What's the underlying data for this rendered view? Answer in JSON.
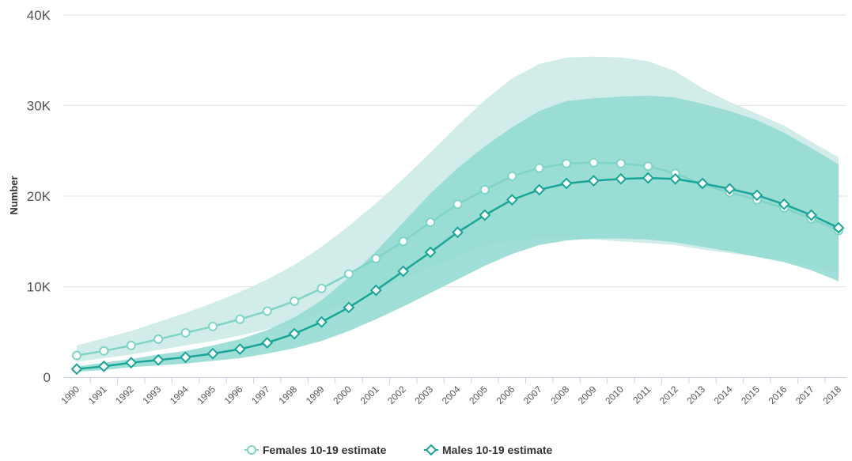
{
  "chart_data": {
    "type": "line",
    "ylabel": "Number",
    "xlabel": "",
    "ylim": [
      0,
      40000
    ],
    "yticks": [
      {
        "value": 0,
        "label": "0"
      },
      {
        "value": 10000,
        "label": "10K"
      },
      {
        "value": 20000,
        "label": "20K"
      },
      {
        "value": 30000,
        "label": "30K"
      },
      {
        "value": 40000,
        "label": "40K"
      }
    ],
    "grid": "horizontal",
    "legend_position": "bottom-center",
    "x": [
      "1990",
      "1991",
      "1992",
      "1993",
      "1994",
      "1995",
      "1996",
      "1997",
      "1998",
      "1999",
      "2000",
      "2001",
      "2002",
      "2003",
      "2004",
      "2005",
      "2006",
      "2007",
      "2008",
      "2009",
      "2010",
      "2011",
      "2012",
      "2013",
      "2014",
      "2015",
      "2016",
      "2017",
      "2018"
    ],
    "series": [
      {
        "name": "Females 10-19 estimate",
        "marker": "circle",
        "color": "#7fd4c6",
        "band_color": "#d2ede9",
        "values": [
          2400,
          2900,
          3500,
          4200,
          4900,
          5600,
          6400,
          7300,
          8400,
          9800,
          11400,
          13100,
          15000,
          17100,
          19100,
          20700,
          22200,
          23100,
          23600,
          23700,
          23600,
          23300,
          22500,
          21300,
          20400,
          19600,
          18700,
          17500,
          16200
        ],
        "lower": [
          1700,
          2100,
          2500,
          3000,
          3500,
          4000,
          4600,
          5300,
          6100,
          7200,
          8300,
          9600,
          10900,
          12100,
          13400,
          14600,
          15100,
          15300,
          15300,
          15200,
          15000,
          14800,
          14600,
          14100,
          13700,
          13300,
          12900,
          12200,
          11600
        ],
        "upper": [
          3500,
          4300,
          5100,
          6100,
          7100,
          8200,
          9400,
          10800,
          12400,
          14400,
          16700,
          19200,
          21900,
          24800,
          27800,
          30600,
          33000,
          34600,
          35300,
          35400,
          35300,
          34900,
          33800,
          31900,
          30400,
          29100,
          27800,
          26000,
          24300
        ]
      },
      {
        "name": "Males 10-19 estimate",
        "marker": "diamond",
        "color": "#1aa599",
        "band_color": "#8fd9d1",
        "values": [
          900,
          1200,
          1600,
          1900,
          2200,
          2600,
          3100,
          3800,
          4800,
          6100,
          7700,
          9600,
          11700,
          13800,
          16000,
          17900,
          19600,
          20700,
          21400,
          21700,
          21900,
          22000,
          21900,
          21400,
          20800,
          20100,
          19100,
          17900,
          16500
        ],
        "lower": [
          600,
          800,
          1100,
          1300,
          1500,
          1800,
          2100,
          2600,
          3200,
          4000,
          5100,
          6400,
          7800,
          9300,
          10800,
          12300,
          13600,
          14600,
          15100,
          15300,
          15300,
          15200,
          14900,
          14400,
          13900,
          13300,
          12700,
          11800,
          10600
        ],
        "upper": [
          1200,
          1600,
          2000,
          2500,
          2900,
          3500,
          4200,
          5200,
          6600,
          8500,
          11000,
          13900,
          17100,
          20300,
          23100,
          25500,
          27600,
          29400,
          30500,
          30800,
          31000,
          31100,
          30900,
          30200,
          29400,
          28400,
          27000,
          25300,
          23500
        ]
      }
    ]
  }
}
